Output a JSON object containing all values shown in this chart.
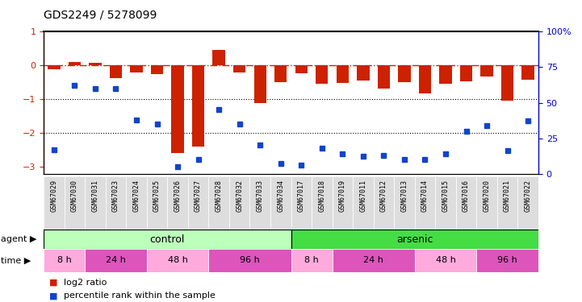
{
  "title": "GDS2249 / 5278099",
  "samples": [
    "GSM67029",
    "GSM67030",
    "GSM67031",
    "GSM67023",
    "GSM67024",
    "GSM67025",
    "GSM67026",
    "GSM67027",
    "GSM67028",
    "GSM67032",
    "GSM67033",
    "GSM67034",
    "GSM67017",
    "GSM67018",
    "GSM67019",
    "GSM67011",
    "GSM67012",
    "GSM67013",
    "GSM67014",
    "GSM67015",
    "GSM67016",
    "GSM67020",
    "GSM67021",
    "GSM67022"
  ],
  "log2_ratio": [
    -0.12,
    0.1,
    0.08,
    -0.38,
    -0.2,
    -0.25,
    -2.6,
    -2.4,
    0.45,
    -0.2,
    -1.1,
    -0.5,
    -0.22,
    -0.55,
    -0.52,
    -0.45,
    -0.68,
    -0.5,
    -0.82,
    -0.55,
    -0.48,
    -0.32,
    -1.05,
    -0.42
  ],
  "percentile": [
    17,
    62,
    60,
    60,
    38,
    35,
    5,
    10,
    45,
    35,
    20,
    7,
    6,
    18,
    14,
    12,
    13,
    10,
    10,
    14,
    30,
    34,
    16,
    37
  ],
  "ylim_left": [
    -3.2,
    1.0
  ],
  "ylim_right": [
    0,
    100
  ],
  "yticks_left": [
    1,
    0,
    -1,
    -2,
    -3
  ],
  "yticks_right": [
    100,
    75,
    50,
    25,
    0
  ],
  "bar_color": "#cc2200",
  "dot_color": "#1144cc",
  "hline_color": "#cc2200",
  "dotted_lines": [
    -1.0,
    -2.0
  ],
  "left_spine_color": "#cc2200",
  "right_spine_color": "#0000cc",
  "control_color": "#bbffbb",
  "arsenic_color": "#44dd44",
  "time_colors": [
    "#ffaadd",
    "#dd55bb"
  ],
  "time_groups": [
    {
      "label": "8 h",
      "start": 0,
      "end": 1,
      "cidx": 0
    },
    {
      "label": "24 h",
      "start": 2,
      "end": 4,
      "cidx": 1
    },
    {
      "label": "48 h",
      "start": 5,
      "end": 7,
      "cidx": 0
    },
    {
      "label": "96 h",
      "start": 8,
      "end": 11,
      "cidx": 1
    },
    {
      "label": "8 h",
      "start": 12,
      "end": 13,
      "cidx": 0
    },
    {
      "label": "24 h",
      "start": 14,
      "end": 17,
      "cidx": 1
    },
    {
      "label": "48 h",
      "start": 18,
      "end": 20,
      "cidx": 0
    },
    {
      "label": "96 h",
      "start": 21,
      "end": 23,
      "cidx": 1
    }
  ],
  "background_color": "#ffffff",
  "xtick_bg_color": "#dddddd"
}
